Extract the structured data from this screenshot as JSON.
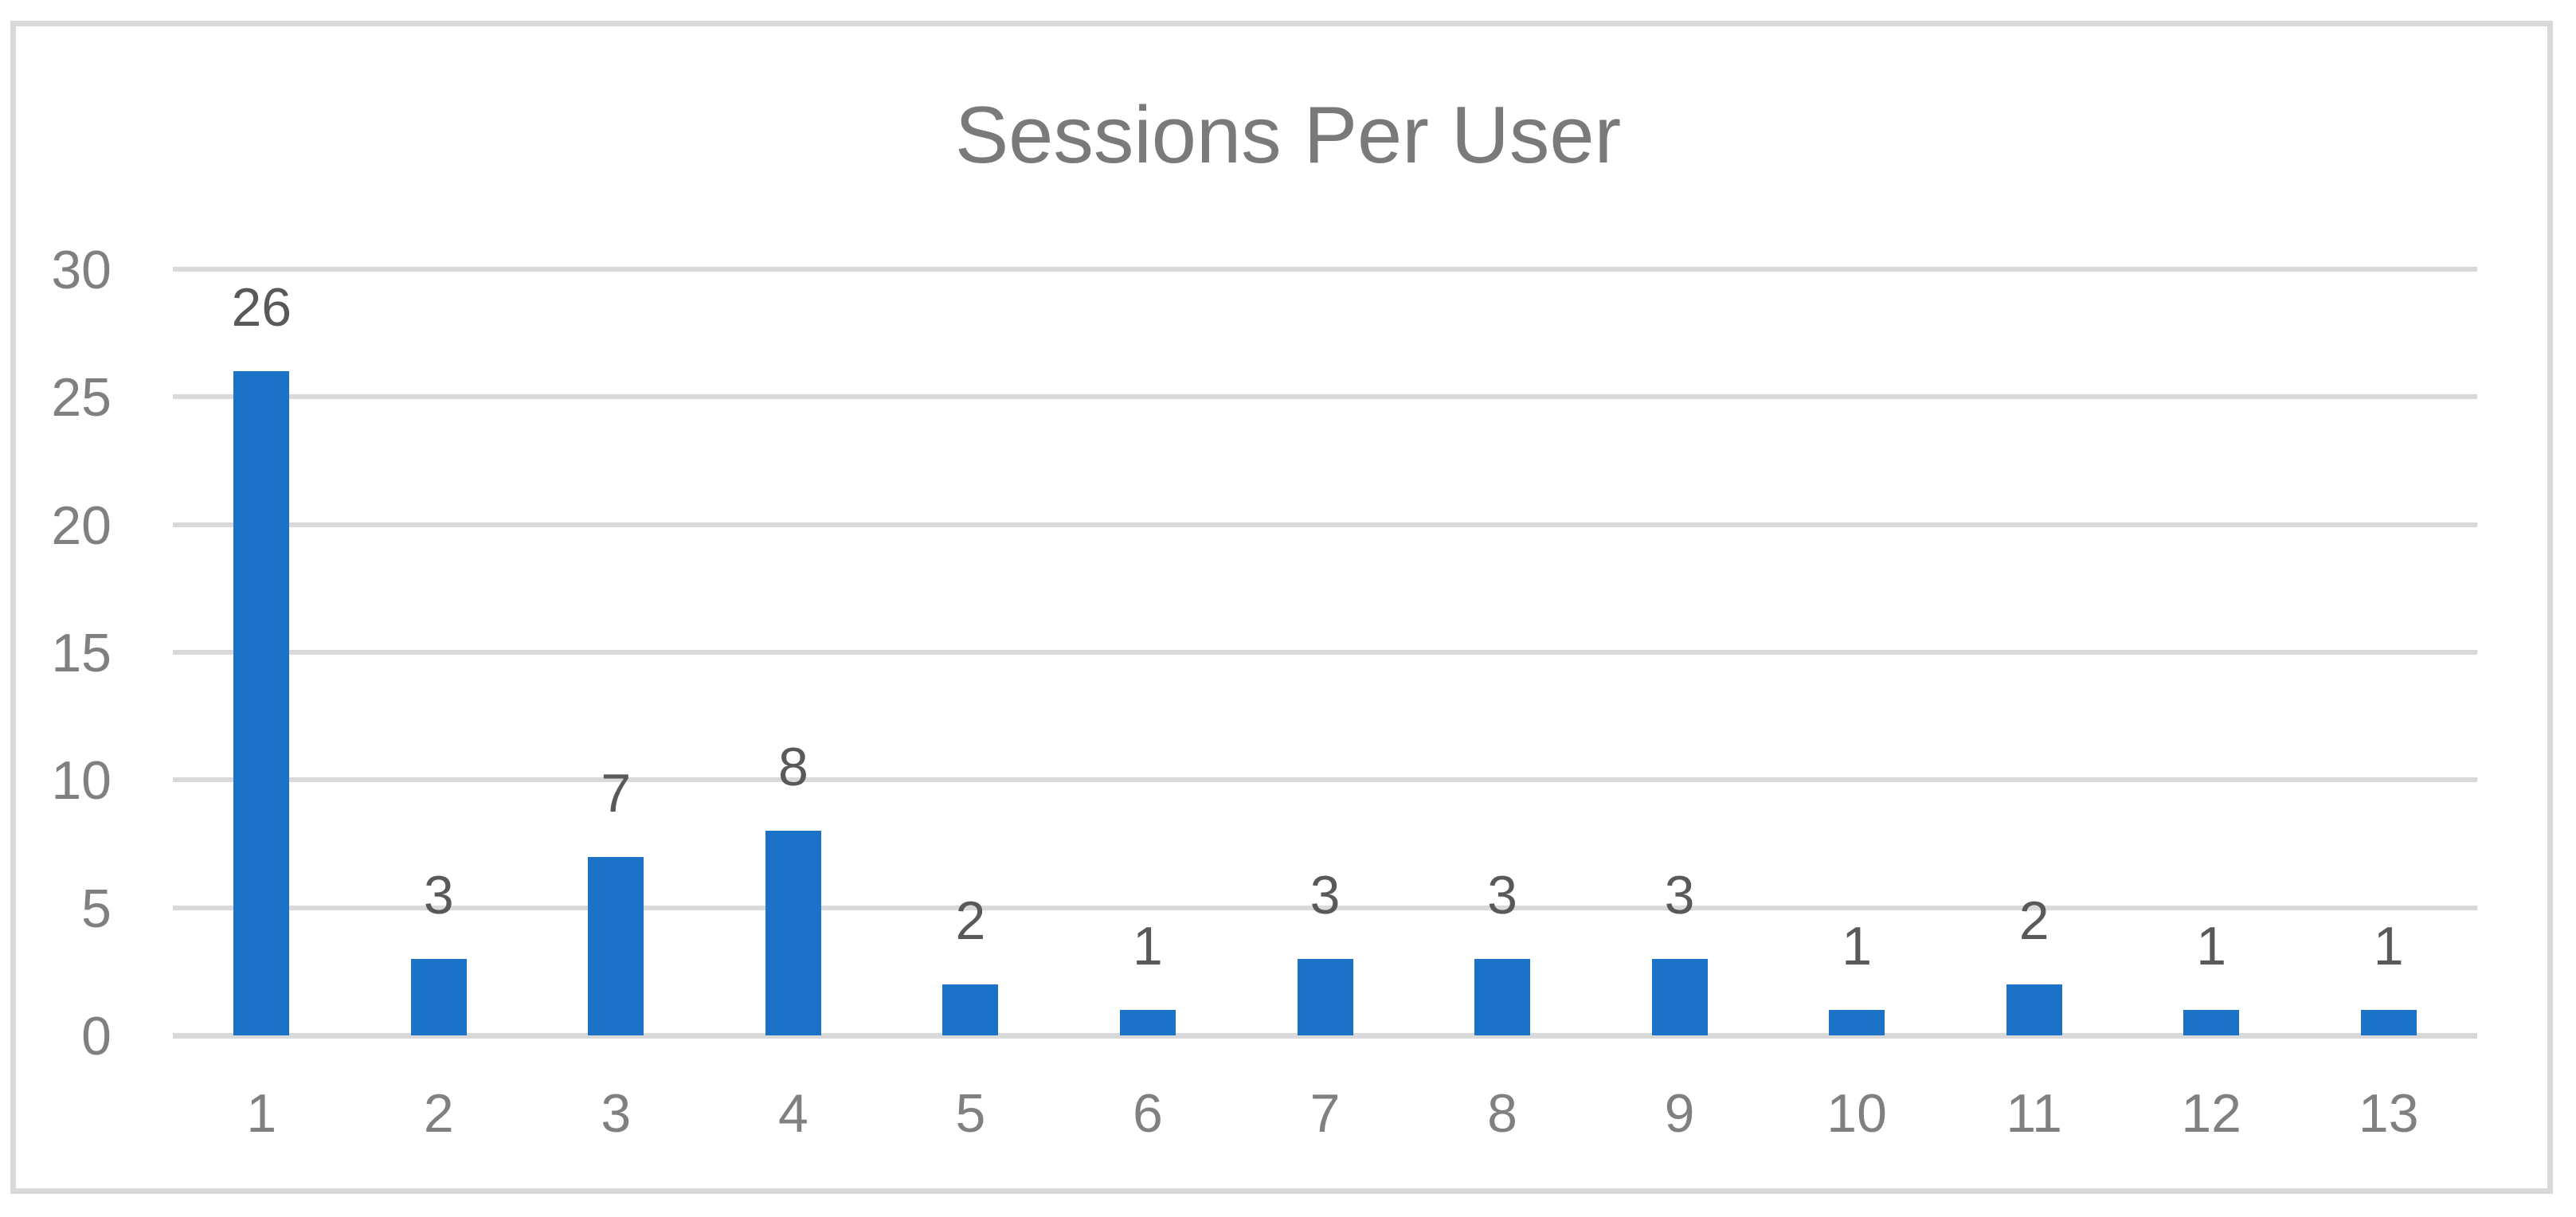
{
  "chart_data": {
    "type": "bar",
    "title": "Sessions Per User",
    "categories": [
      "1",
      "2",
      "3",
      "4",
      "5",
      "6",
      "7",
      "8",
      "9",
      "10",
      "11",
      "12",
      "13"
    ],
    "values": [
      26,
      3,
      7,
      8,
      2,
      1,
      3,
      3,
      3,
      1,
      2,
      1,
      1
    ],
    "yticks": [
      0,
      5,
      10,
      15,
      20,
      25,
      30
    ],
    "ylim": [
      0,
      30
    ],
    "xlabel": "",
    "ylabel": "",
    "grid": true,
    "legend_position": "none",
    "data_labels": "outside-end",
    "colors": {
      "bar": "#1B72C6",
      "gridline": "#D9D9D9",
      "chart_border": "#D9D9D9",
      "title_text": "#7A7A7A",
      "axis_text": "#808080",
      "data_label_text": "#595959",
      "background": "#FFFFFF"
    }
  }
}
